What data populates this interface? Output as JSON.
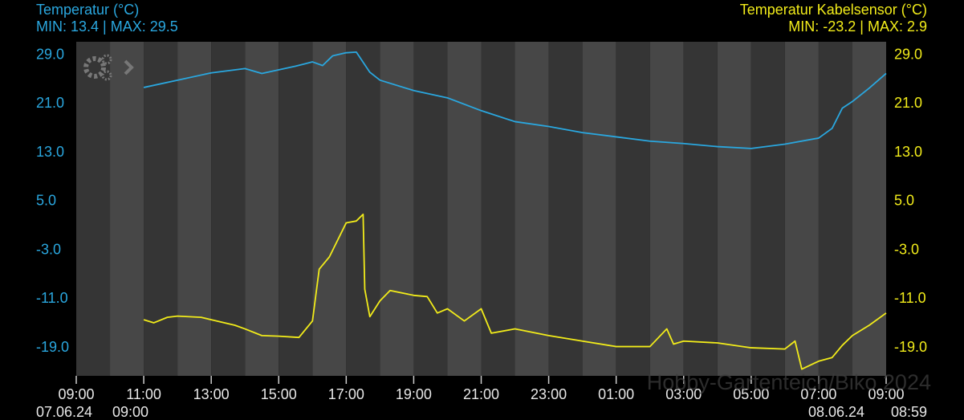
{
  "chart_data": {
    "type": "line",
    "watermark": "Hobby-Gartenteich/Biko 2024",
    "x_start_date": "07.06.24",
    "x_data_start": "09:00",
    "x_end_date": "08.06.24",
    "x_end_time": "08:59",
    "xlim": [
      0,
      24
    ],
    "xticks": [
      {
        "value": 0,
        "label": "09:00"
      },
      {
        "value": 2,
        "label": "11:00"
      },
      {
        "value": 4,
        "label": "13:00"
      },
      {
        "value": 6,
        "label": "15:00"
      },
      {
        "value": 8,
        "label": "17:00"
      },
      {
        "value": 10,
        "label": "19:00"
      },
      {
        "value": 12,
        "label": "21:00"
      },
      {
        "value": 14,
        "label": "23:00"
      },
      {
        "value": 16,
        "label": "01:00"
      },
      {
        "value": 18,
        "label": "03:00"
      },
      {
        "value": 20,
        "label": "05:00"
      },
      {
        "value": 22,
        "label": "07:00"
      },
      {
        "value": 24,
        "label": "09:00"
      }
    ],
    "ylim": [
      -23.6,
      31.2
    ],
    "yticks": [
      {
        "value": 29,
        "label": "29.0"
      },
      {
        "value": 21,
        "label": "21.0"
      },
      {
        "value": 13,
        "label": "13.0"
      },
      {
        "value": 5,
        "label": "5.0"
      },
      {
        "value": -3,
        "label": "-3.0"
      },
      {
        "value": -11,
        "label": "-11.0"
      },
      {
        "value": -19,
        "label": "-19.0"
      }
    ],
    "y2lim": [
      -23.6,
      31.2
    ],
    "y2ticks": [
      {
        "value": 29,
        "label": "29.0"
      },
      {
        "value": 21,
        "label": "21.0"
      },
      {
        "value": 13,
        "label": "13.0"
      },
      {
        "value": 5,
        "label": "5.0"
      },
      {
        "value": -3,
        "label": "-3.0"
      },
      {
        "value": -11,
        "label": "-11.0"
      },
      {
        "value": -19,
        "label": "-19.0"
      }
    ],
    "series": [
      {
        "name": "Temperatur (°C)",
        "min_max": "MIN: 13.4 | MAX: 29.5",
        "color": "#2aa7df",
        "x": [
          2,
          3,
          4,
          5,
          5.5,
          6.5,
          7,
          7.3,
          7.6,
          8,
          8.3,
          8.7,
          9,
          10,
          11,
          12,
          13,
          14,
          15,
          16,
          17,
          18,
          19,
          20,
          21,
          22,
          22.4,
          22.7,
          23,
          23.5,
          24
        ],
        "values": [
          23.7,
          24.9,
          26.1,
          26.8,
          26.0,
          27.2,
          27.9,
          27.3,
          28.9,
          29.4,
          29.5,
          26.2,
          24.9,
          23.2,
          22.0,
          19.9,
          18.1,
          17.3,
          16.3,
          15.6,
          14.9,
          14.5,
          14.0,
          13.7,
          14.4,
          15.4,
          17.0,
          20.3,
          21.4,
          23.6,
          26.0
        ]
      },
      {
        "name": "Temperatur Kabelsensor (°C)",
        "min_max": "MIN: -23.2 | MAX: 2.9",
        "color": "#f2ec1a",
        "axis": "y2",
        "x": [
          2,
          2.3,
          2.7,
          3,
          3.7,
          4,
          4.7,
          5,
          5.5,
          6,
          6.6,
          7,
          7.2,
          7.5,
          8,
          8.3,
          8.5,
          8.55,
          8.7,
          9,
          9.3,
          10,
          10.4,
          10.7,
          11,
          11.5,
          12,
          12.3,
          13,
          14,
          15,
          16,
          17,
          17.5,
          17.7,
          18,
          19,
          20,
          21,
          21.3,
          21.5,
          22,
          22.4,
          22.7,
          23,
          23.5,
          24
        ],
        "values": [
          -14.4,
          -14.9,
          -14.0,
          -13.8,
          -14.0,
          -14.4,
          -15.3,
          -15.9,
          -17.0,
          -17.1,
          -17.3,
          -14.6,
          -6.1,
          -4.1,
          1.5,
          1.8,
          2.9,
          -9.4,
          -13.9,
          -11.3,
          -9.6,
          -10.4,
          -10.6,
          -13.3,
          -12.6,
          -14.6,
          -12.6,
          -16.6,
          -15.9,
          -17.0,
          -17.9,
          -18.8,
          -18.8,
          -15.9,
          -18.4,
          -17.9,
          -18.2,
          -19.0,
          -19.2,
          -17.9,
          -22.5,
          -21.2,
          -20.6,
          -18.6,
          -17.0,
          -15.3,
          -13.3
        ]
      }
    ]
  }
}
